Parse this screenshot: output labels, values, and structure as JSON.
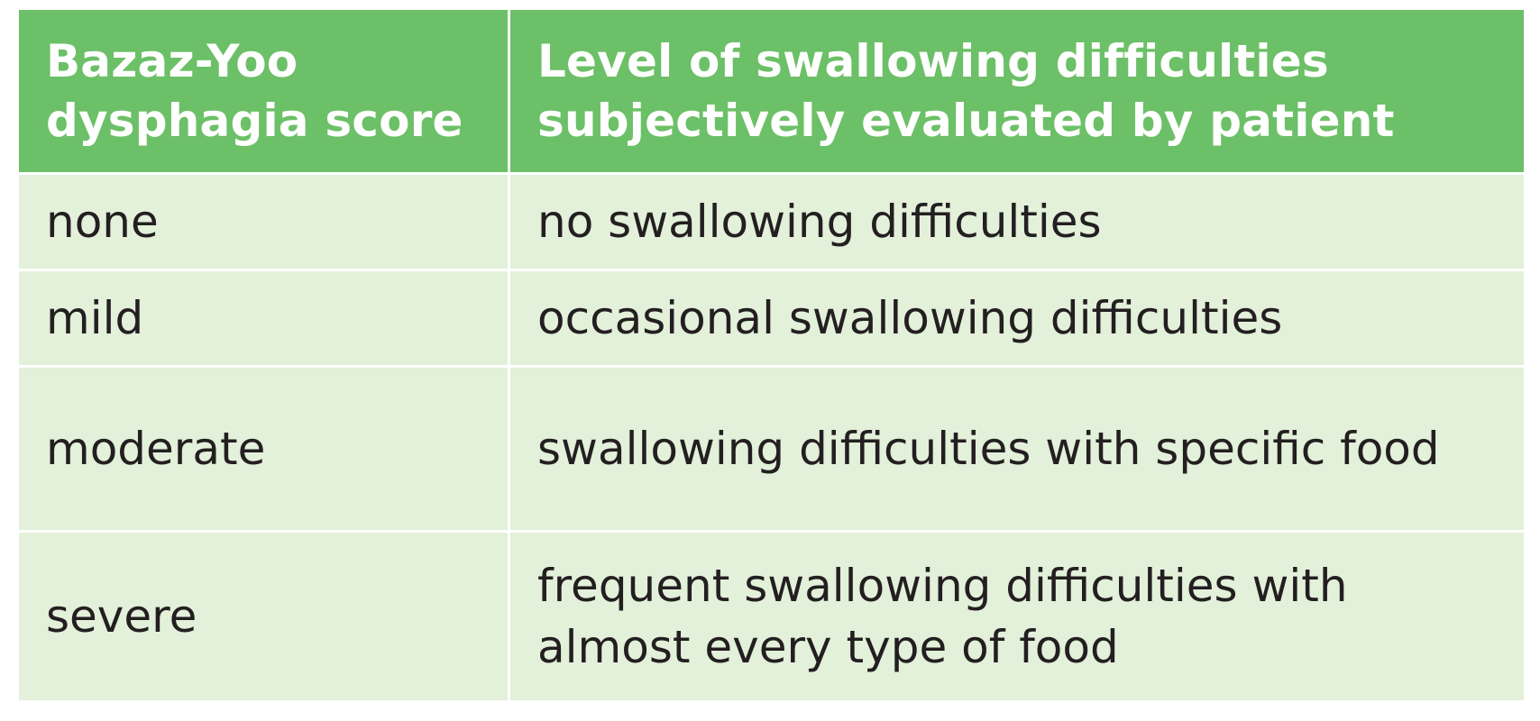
{
  "table": {
    "headers": [
      "Bazaz-Yoo dysphagia score",
      "Level of swallowing difficulties subjectively evaluated by patient"
    ],
    "rows": [
      {
        "score": "none",
        "description": "no swallowing difficulties"
      },
      {
        "score": "mild",
        "description": "occasional swallowing difficulties"
      },
      {
        "score": "moderate",
        "description": "swallowing difficulties with specific food"
      },
      {
        "score": "severe",
        "description": "frequent swallowing difficulties with almost every type of food"
      }
    ]
  },
  "colors": {
    "header_background": "#6cc067",
    "header_text": "#ffffff",
    "row_background": "#e3f0da",
    "body_text": "#231f20"
  }
}
